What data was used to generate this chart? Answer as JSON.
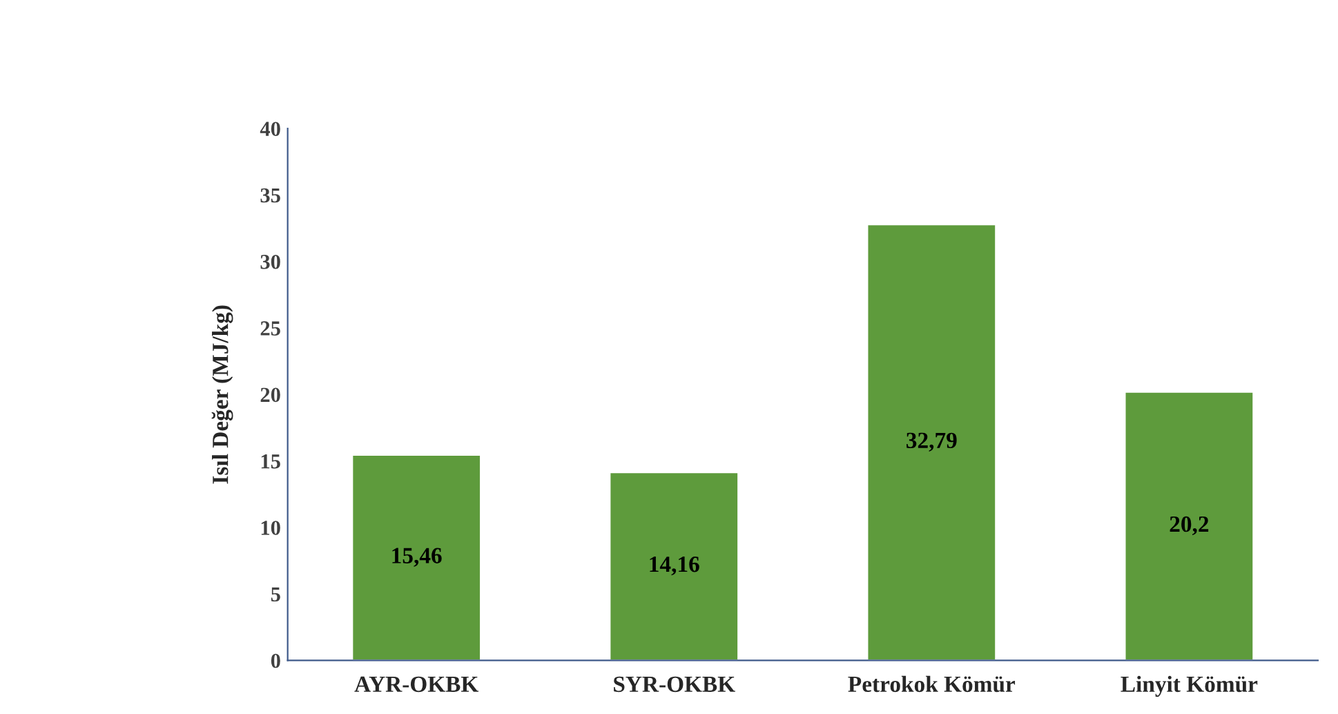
{
  "chart_data": {
    "type": "bar",
    "ylabel": "Isıl Değer (MJ/kg)",
    "categories": [
      "AYR-OKBK",
      "SYR-OKBK",
      "Petrokok Kömür",
      "Linyit Kömür"
    ],
    "values": [
      15.46,
      14.16,
      32.79,
      20.2
    ],
    "value_labels": [
      "15,46",
      "14,16",
      "32,79",
      "20,2"
    ],
    "color": "#5e9b3c",
    "ylim": [
      0,
      40
    ],
    "yticks": [
      0,
      5,
      10,
      15,
      20,
      25,
      30,
      35,
      40
    ],
    "grid": false
  }
}
